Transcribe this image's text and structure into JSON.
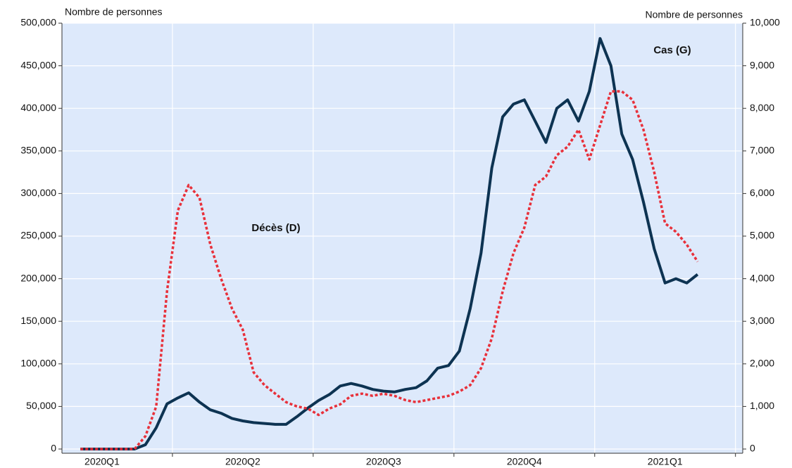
{
  "chart_data": {
    "type": "line",
    "left_axis_label": "Nombre de personnes",
    "right_axis_label": "Nombre de personnes",
    "annotations": [
      {
        "text": "Cas (G)",
        "series": 0
      },
      {
        "text": "Décès (D)",
        "series": 1
      }
    ],
    "categories": [
      null,
      null,
      "2020Q1",
      null,
      null,
      null,
      null,
      null,
      null,
      null,
      null,
      null,
      null,
      null,
      null,
      "2020Q2",
      null,
      null,
      null,
      null,
      null,
      null,
      null,
      null,
      null,
      null,
      null,
      null,
      "2020Q3",
      null,
      null,
      null,
      null,
      null,
      null,
      null,
      null,
      null,
      null,
      null,
      null,
      "2020Q4",
      null,
      null,
      null,
      null,
      null,
      null,
      null,
      null,
      null,
      null,
      null,
      null,
      "2021Q1",
      null,
      null,
      null
    ],
    "series": [
      {
        "name": "Cas",
        "color": "#0d3352",
        "dash": false,
        "values": [
          0,
          0,
          0,
          0,
          0,
          0,
          5000,
          25000,
          53000,
          60000,
          66000,
          55000,
          46000,
          42000,
          36000,
          33000,
          31000,
          30000,
          29000,
          29000,
          38000,
          48000,
          57000,
          64000,
          74000,
          77000,
          74000,
          70000,
          68000,
          67000,
          70000,
          72000,
          80000,
          95000,
          98000,
          115000,
          165000,
          230000,
          330000,
          390000,
          405000,
          410000,
          385000,
          360000,
          400000,
          410000,
          385000,
          420000,
          482000,
          450000,
          370000,
          340000,
          290000,
          235000,
          195000,
          200000,
          195000,
          205000
        ]
      },
      {
        "name": "Décès",
        "color": "#e8303a",
        "dash": true,
        "axis": "y2",
        "values": [
          0,
          0,
          0,
          0,
          0,
          0,
          300,
          1000,
          3700,
          5600,
          6200,
          5900,
          4800,
          4000,
          3300,
          2800,
          1800,
          1500,
          1300,
          1100,
          1000,
          950,
          800,
          950,
          1050,
          1250,
          1300,
          1250,
          1300,
          1250,
          1150,
          1100,
          1150,
          1200,
          1250,
          1350,
          1500,
          1900,
          2600,
          3700,
          4600,
          5200,
          6200,
          6400,
          6900,
          7100,
          7500,
          6800,
          7600,
          8400,
          8400,
          8200,
          7500,
          6500,
          5300,
          5100,
          4800,
          4400
        ]
      }
    ],
    "ylim": [
      0,
      500000
    ],
    "yticks": [
      0,
      {
        "value": 50000,
        "label": "50,000"
      },
      {
        "value": 100000,
        "label": "100,000"
      },
      {
        "value": 150000,
        "label": "150,000"
      },
      {
        "value": 200000,
        "label": "200,000"
      },
      {
        "value": 250000,
        "label": "250,000"
      },
      {
        "value": 300000,
        "label": "300,000"
      },
      {
        "value": 350000,
        "label": "350,000"
      },
      {
        "value": 400000,
        "label": "400,000"
      },
      {
        "value": 450000,
        "label": "450,000"
      },
      {
        "value": 500000,
        "label": "500,000"
      }
    ],
    "y2lim": [
      0,
      10000
    ],
    "y2ticks": [
      0,
      {
        "value": 1000,
        "label": "1,000"
      },
      {
        "value": 2000,
        "label": "2,000"
      },
      {
        "value": 3000,
        "label": "3,000"
      },
      {
        "value": 4000,
        "label": "4,000"
      },
      {
        "value": 5000,
        "label": "5,000"
      },
      {
        "value": 6000,
        "label": "6,000"
      },
      {
        "value": 7000,
        "label": "7,000"
      },
      {
        "value": 8000,
        "label": "8,000"
      },
      {
        "value": 9000,
        "label": "9,000"
      },
      {
        "value": 10000,
        "label": "10,000"
      }
    ],
    "grid": true
  }
}
